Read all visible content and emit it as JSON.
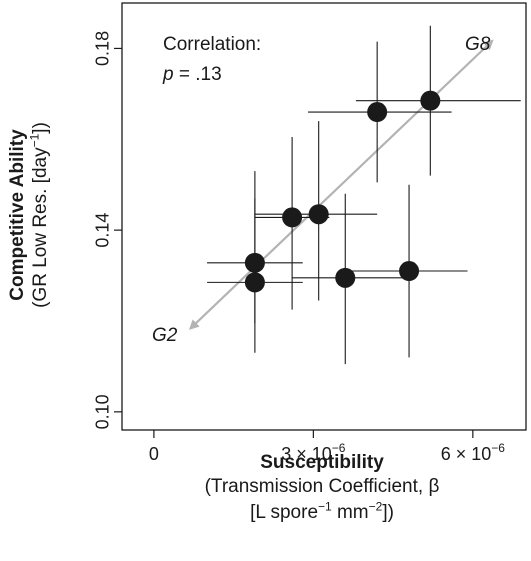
{
  "chart_data": {
    "type": "scatter",
    "ylabel_bold": "Competitive Ability",
    "ylabel_line2": "(GR Low Res. [day",
    "ylabel_line2_sup": "−1",
    "ylabel_line2_end": "])",
    "xlabel_bold": "Susceptibility",
    "xlabel_line2": "(Transmission Coefficient, β",
    "xlabel_line3_a": "[L spore",
    "xlabel_line3_sup1": "−1",
    "xlabel_line3_b": " mm",
    "xlabel_line3_sup2": "−2",
    "xlabel_line3_c": "])",
    "xlim": [
      -6e-07,
      7e-06
    ],
    "ylim": [
      0.096,
      0.19
    ],
    "x_ticks": [
      {
        "value": 0,
        "label": "0"
      },
      {
        "value": 3e-06,
        "label": "3 × 10",
        "sup": "−6"
      },
      {
        "value": 6e-06,
        "label": "6 × 10",
        "sup": "−6"
      }
    ],
    "y_ticks": [
      {
        "value": 0.1,
        "label": "0.10"
      },
      {
        "value": 0.14,
        "label": "0.14"
      },
      {
        "value": 0.18,
        "label": "0.18"
      }
    ],
    "annotation_title": "Correlation:",
    "annotation_p_symbol": "p",
    "annotation_p_value": " = .13",
    "arrow_labels": {
      "start": "G2",
      "end": "G8"
    },
    "arrow": {
      "x_start": 7e-07,
      "y_start": 0.1185,
      "x_end": 6.35e-06,
      "y_end": 0.1815
    },
    "points": [
      {
        "x": 1.9e-06,
        "y": 0.1328,
        "xerr": [
          1e-06,
          2.8e-06
        ],
        "yerr": [
          0.1195,
          0.147
        ]
      },
      {
        "x": 1.9e-06,
        "y": 0.1285,
        "xerr": [
          1e-06,
          2.8e-06
        ],
        "yerr": [
          0.113,
          0.153
        ]
      },
      {
        "x": 2.6e-06,
        "y": 0.1428,
        "xerr": [
          1.9e-06,
          3.3e-06
        ],
        "yerr": [
          0.1225,
          0.1605
        ]
      },
      {
        "x": 3.1e-06,
        "y": 0.1435,
        "xerr": [
          1.9e-06,
          4.2e-06
        ],
        "yerr": [
          0.1245,
          0.164
        ]
      },
      {
        "x": 3.6e-06,
        "y": 0.1295,
        "xerr": [
          2.6e-06,
          4.7e-06
        ],
        "yerr": [
          0.1105,
          0.148
        ]
      },
      {
        "x": 4.8e-06,
        "y": 0.131,
        "xerr": [
          3.6e-06,
          5.9e-06
        ],
        "yerr": [
          0.112,
          0.15
        ]
      },
      {
        "x": 4.2e-06,
        "y": 0.166,
        "xerr": [
          2.9e-06,
          5.6e-06
        ],
        "yerr": [
          0.1505,
          0.1815
        ]
      },
      {
        "x": 5.2e-06,
        "y": 0.1685,
        "xerr": [
          3.8e-06,
          6.9e-06
        ],
        "yerr": [
          0.152,
          0.185
        ]
      }
    ]
  }
}
